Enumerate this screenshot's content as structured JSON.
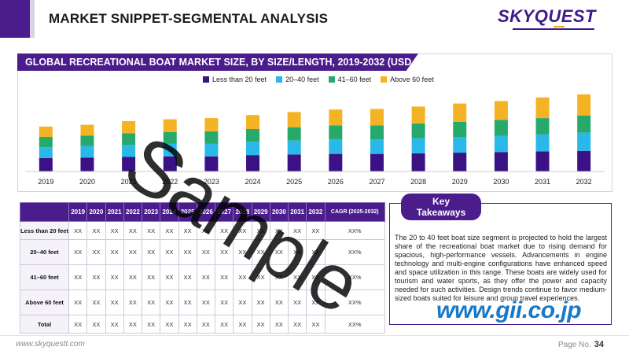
{
  "header": {
    "title": "MARKET SNIPPET-SEGMENTAL ANALYSIS",
    "logo": "SKYQUEST"
  },
  "chart": {
    "banner": "GLOBAL RECREATIONAL BOAT MARKET SIZE, BY SIZE/LENGTH, 2019-2032 (USD BILLION)"
  },
  "chart_data": {
    "type": "bar",
    "stacked": true,
    "categories": [
      "2019",
      "2020",
      "2021",
      "2022",
      "2023",
      "2024",
      "2025",
      "2026",
      "2027",
      "2028",
      "2029",
      "2030",
      "2031",
      "2032"
    ],
    "series": [
      {
        "name": "Less than 20 feet",
        "color": "#3b1286",
        "values": [
          22,
          23,
          24,
          25,
          25,
          27,
          28,
          29,
          29,
          30,
          31,
          32,
          33,
          34
        ]
      },
      {
        "name": "20-40 feet",
        "color": "#29b8e8",
        "values": [
          18,
          19,
          20,
          21,
          21,
          22,
          23,
          24,
          24,
          25,
          26,
          27,
          28,
          30
        ]
      },
      {
        "name": "41-60 feet",
        "color": "#27a96b",
        "values": [
          17,
          17,
          19,
          19,
          20,
          21,
          22,
          23,
          23,
          24,
          25,
          26,
          27,
          28
        ]
      },
      {
        "name": "Above 60 feet",
        "color": "#f4b324",
        "values": [
          17,
          18,
          20,
          21,
          22,
          23,
          25,
          26,
          27,
          28,
          30,
          31,
          34,
          35
        ]
      }
    ],
    "legend_position": "top",
    "grid": false
  },
  "legend": {
    "items": [
      {
        "label": "Less than 20 feet",
        "color": "#3b1286"
      },
      {
        "label": "20–40 feet",
        "color": "#29b8e8"
      },
      {
        "label": "41–60 feet",
        "color": "#27a96b"
      },
      {
        "label": "Above 60 feet",
        "color": "#f4b324"
      }
    ]
  },
  "table": {
    "headers": [
      "2019",
      "2020",
      "2021",
      "2022",
      "2023",
      "2024",
      "2025",
      "2026",
      "2027",
      "2028",
      "2029",
      "2030",
      "2031",
      "2032",
      "CAGR (2025-2032)"
    ],
    "rows": [
      {
        "label": "Less than 20 feet",
        "cells": [
          "XX",
          "XX",
          "XX",
          "XX",
          "XX",
          "XX",
          "XX",
          "XX",
          "XX",
          "XX",
          "XX",
          "XX",
          "XX",
          "XX",
          "XX%"
        ]
      },
      {
        "label": "20–40 feet",
        "cells": [
          "XX",
          "XX",
          "XX",
          "XX",
          "XX",
          "XX",
          "XX",
          "XX",
          "XX",
          "XX",
          "XX",
          "XX",
          "XX",
          "XX",
          "XX%"
        ]
      },
      {
        "label": "41–60 feet",
        "cells": [
          "XX",
          "XX",
          "XX",
          "XX",
          "XX",
          "XX",
          "XX",
          "XX",
          "XX",
          "XX",
          "XX",
          "XX",
          "XX",
          "XX",
          "XX%"
        ]
      },
      {
        "label": "Above 60 feet",
        "cells": [
          "XX",
          "XX",
          "XX",
          "XX",
          "XX",
          "XX",
          "XX",
          "XX",
          "XX",
          "XX",
          "XX",
          "XX",
          "XX",
          "XX",
          "XX%"
        ]
      },
      {
        "label": "Total",
        "cells": [
          "XX",
          "XX",
          "XX",
          "XX",
          "XX",
          "XX",
          "XX",
          "XX",
          "XX",
          "XX",
          "XX",
          "XX",
          "XX",
          "XX",
          "XX%"
        ]
      }
    ]
  },
  "takeaways": {
    "tab_line1": "Key",
    "tab_line2": "Takeaways",
    "body": "The 20 to 40 feet boat size segment is projected to hold the largest share of the recreational boat market due to rising demand for spacious, high-performance vessels. Advancements in engine technology and multi-engine configurations have enhanced speed and space utilization in this range. These boats are widely used for tourism and water sports, as they offer the power and capacity needed for such activities. Design trends continue to favor medium-sized boats suited for leisure and group travel experiences."
  },
  "footer": {
    "url": "www.skyquestt.com",
    "page_label": "Page No.",
    "page_number": "34"
  },
  "watermark": {
    "text": "Sample",
    "gii": "www.gii.co.jp"
  }
}
